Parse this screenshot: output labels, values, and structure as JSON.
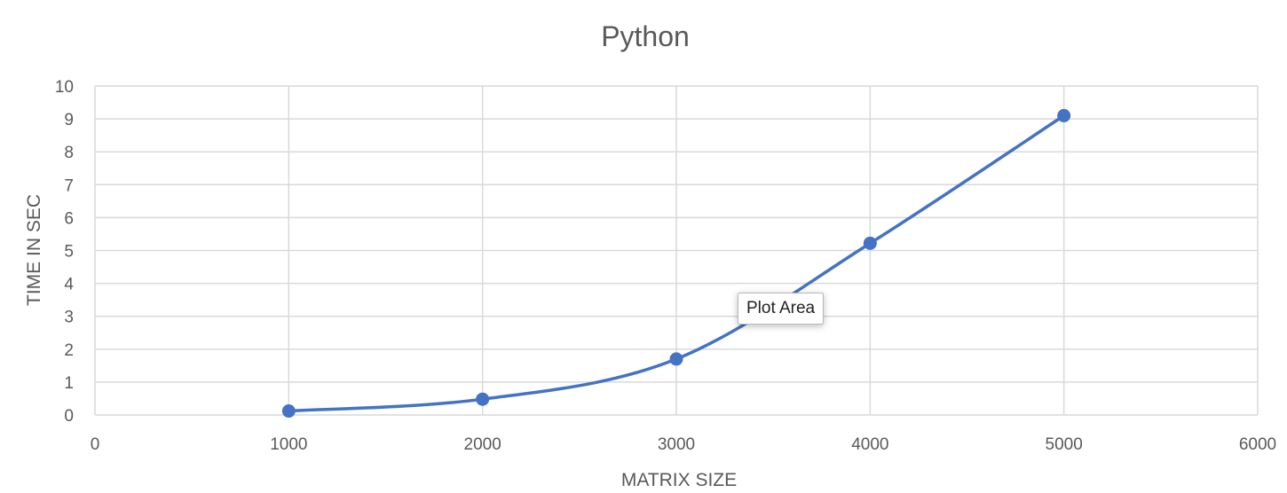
{
  "chart_data": {
    "type": "scatter",
    "title": "Python",
    "xlabel": "MATRIX SIZE",
    "ylabel": "TIME IN SEC",
    "xlim": [
      0,
      6000
    ],
    "ylim": [
      0,
      10
    ],
    "x_ticks": [
      "0",
      "1000",
      "2000",
      "3000",
      "4000",
      "5000",
      "6000"
    ],
    "y_ticks": [
      "0",
      "1",
      "2",
      "3",
      "4",
      "5",
      "6",
      "7",
      "8",
      "9",
      "10"
    ],
    "grid": true,
    "smooth_line": true,
    "series": [
      {
        "color": "#4472c4",
        "points": [
          {
            "x": 1000,
            "y": 0.12
          },
          {
            "x": 2000,
            "y": 0.48
          },
          {
            "x": 3000,
            "y": 1.7
          },
          {
            "x": 4000,
            "y": 5.22
          },
          {
            "x": 5000,
            "y": 9.1
          }
        ]
      }
    ]
  },
  "tooltip": {
    "text": "Plot Area"
  }
}
